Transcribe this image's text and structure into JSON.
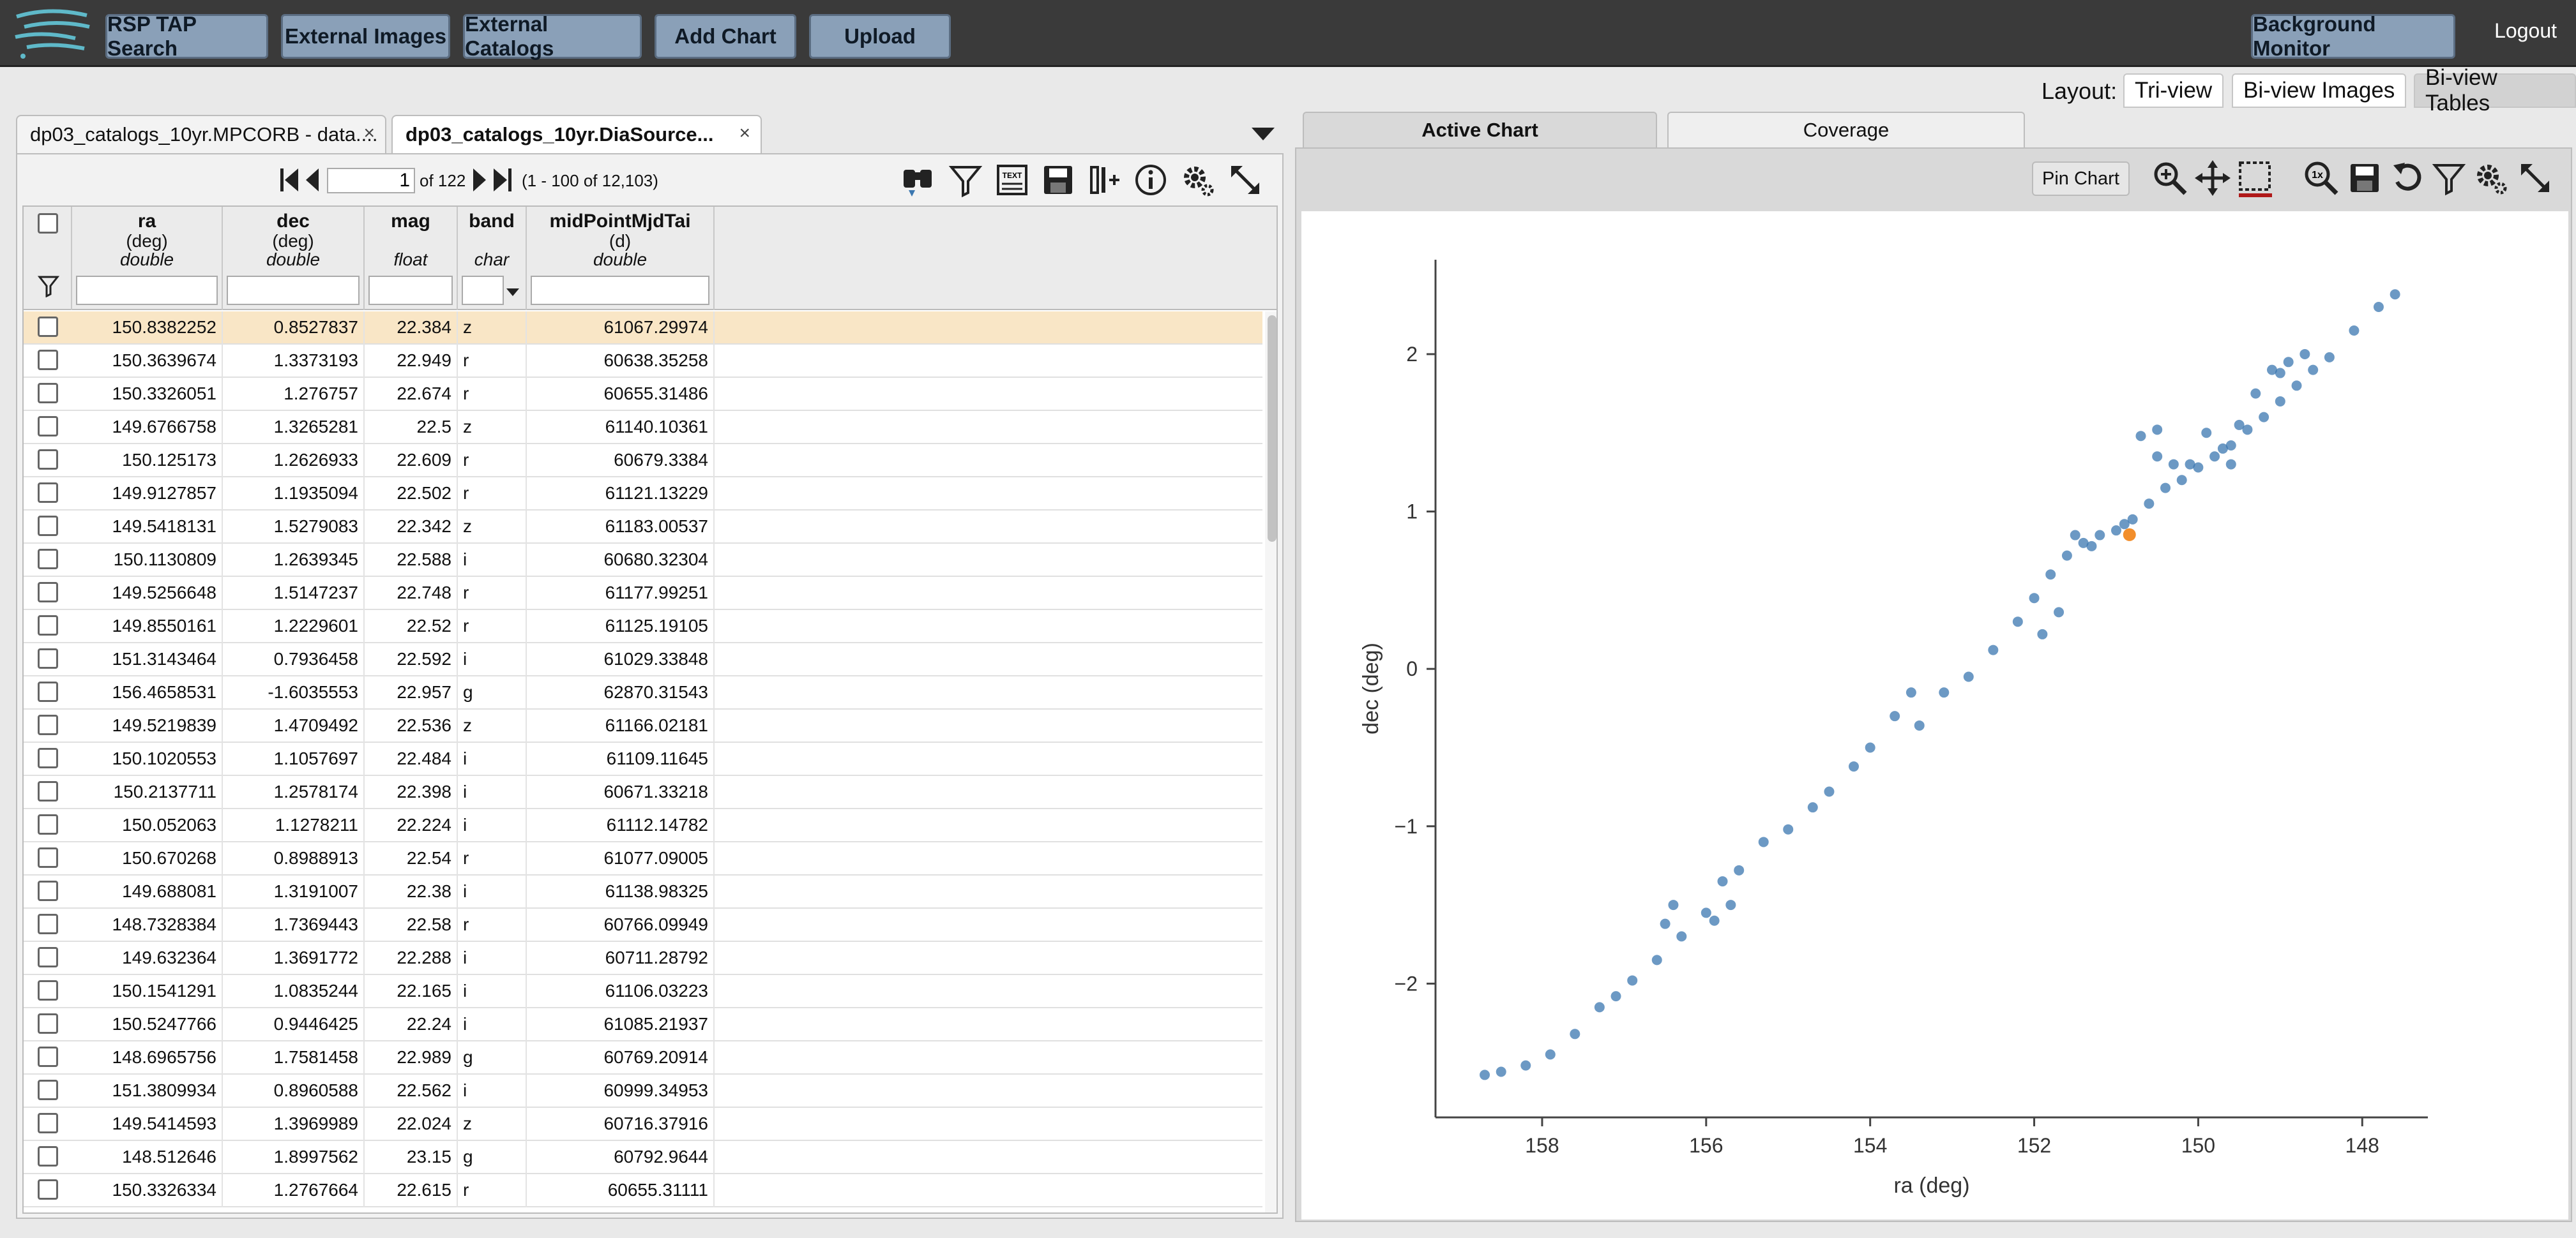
{
  "topbar": {
    "buttons": [
      "RSP TAP Search",
      "External Images",
      "External Catalogs",
      "Add Chart",
      "Upload"
    ],
    "background_monitor": "Background Monitor",
    "logout": "Logout"
  },
  "layout": {
    "label": "Layout:",
    "options": [
      "Tri-view",
      "Bi-view Images",
      "Bi-view Tables"
    ],
    "selected": "Bi-view Tables"
  },
  "tables": {
    "tabs": [
      "dp03_catalogs_10yr.MPCORB - data....",
      "dp03_catalogs_10yr.DiaSource..."
    ],
    "close_glyph": "×",
    "pager": {
      "page": "1",
      "of_text": "of 122",
      "range_text": "(1 - 100 of 12,103)"
    },
    "columns": [
      {
        "name": "ra",
        "unit": "(deg)",
        "type": "double"
      },
      {
        "name": "dec",
        "unit": "(deg)",
        "type": "double"
      },
      {
        "name": "mag",
        "unit": "",
        "type": "float"
      },
      {
        "name": "band",
        "unit": "",
        "type": "char"
      },
      {
        "name": "midPointMjdTai",
        "unit": "(d)",
        "type": "double"
      }
    ],
    "rows": [
      [
        "150.8382252",
        "0.8527837",
        "22.384",
        "z",
        "61067.29974"
      ],
      [
        "150.3639674",
        "1.3373193",
        "22.949",
        "r",
        "60638.35258"
      ],
      [
        "150.3326051",
        "1.276757",
        "22.674",
        "r",
        "60655.31486"
      ],
      [
        "149.6766758",
        "1.3265281",
        "22.5",
        "z",
        "61140.10361"
      ],
      [
        "150.125173",
        "1.2626933",
        "22.609",
        "r",
        "60679.3384"
      ],
      [
        "149.9127857",
        "1.1935094",
        "22.502",
        "r",
        "61121.13229"
      ],
      [
        "149.5418131",
        "1.5279083",
        "22.342",
        "z",
        "61183.00537"
      ],
      [
        "150.1130809",
        "1.2639345",
        "22.588",
        "i",
        "60680.32304"
      ],
      [
        "149.5256648",
        "1.5147237",
        "22.748",
        "r",
        "61177.99251"
      ],
      [
        "149.8550161",
        "1.2229601",
        "22.52",
        "r",
        "61125.19105"
      ],
      [
        "151.3143464",
        "0.7936458",
        "22.592",
        "i",
        "61029.33848"
      ],
      [
        "156.4658531",
        "-1.6035553",
        "22.957",
        "g",
        "62870.31543"
      ],
      [
        "149.5219839",
        "1.4709492",
        "22.536",
        "z",
        "61166.02181"
      ],
      [
        "150.1020553",
        "1.1057697",
        "22.484",
        "i",
        "61109.11645"
      ],
      [
        "150.2137711",
        "1.2578174",
        "22.398",
        "i",
        "60671.33218"
      ],
      [
        "150.052063",
        "1.1278211",
        "22.224",
        "i",
        "61112.14782"
      ],
      [
        "150.670268",
        "0.8988913",
        "22.54",
        "r",
        "61077.09005"
      ],
      [
        "149.688081",
        "1.3191007",
        "22.38",
        "i",
        "61138.98325"
      ],
      [
        "148.7328384",
        "1.7369443",
        "22.58",
        "r",
        "60766.09949"
      ],
      [
        "149.632364",
        "1.3691772",
        "22.288",
        "i",
        "60711.28792"
      ],
      [
        "150.1541291",
        "1.0835244",
        "22.165",
        "i",
        "61106.03223"
      ],
      [
        "150.5247766",
        "0.9446425",
        "22.24",
        "i",
        "61085.21937"
      ],
      [
        "148.6965756",
        "1.7581458",
        "22.989",
        "g",
        "60769.20914"
      ],
      [
        "151.3809934",
        "0.8960588",
        "22.562",
        "i",
        "60999.34953"
      ],
      [
        "149.5414593",
        "1.3969989",
        "22.024",
        "z",
        "60716.37916"
      ],
      [
        "148.512646",
        "1.8997562",
        "23.15",
        "g",
        "60792.9644"
      ],
      [
        "150.3326334",
        "1.2767664",
        "22.615",
        "r",
        "60655.31111"
      ]
    ]
  },
  "chart_panel": {
    "tabs": [
      "Active Chart",
      "Coverage"
    ],
    "pin_label": "Pin Chart",
    "zoom_1x_label": "1x"
  },
  "chart_data": {
    "type": "scatter",
    "xlabel": "ra (deg)",
    "ylabel": "dec (deg)",
    "x_reversed": true,
    "xlim": [
      159.3,
      147.2
    ],
    "ylim": [
      -2.85,
      2.6
    ],
    "xticks": [
      "158",
      "156",
      "154",
      "152",
      "150",
      "148"
    ],
    "yticks": [
      "2",
      "1",
      "0",
      "−1",
      "−2"
    ],
    "grid": false,
    "color": "#3b77b0",
    "highlight_color": "#f28e2b",
    "highlight_point": [
      150.8382252,
      0.8527837
    ],
    "series": [
      {
        "points": [
          [
            158.7,
            -2.58
          ],
          [
            158.5,
            -2.56
          ],
          [
            158.2,
            -2.52
          ],
          [
            157.9,
            -2.45
          ],
          [
            157.6,
            -2.32
          ],
          [
            157.3,
            -2.15
          ],
          [
            157.1,
            -2.08
          ],
          [
            156.9,
            -1.98
          ],
          [
            156.6,
            -1.85
          ],
          [
            156.3,
            -1.7
          ],
          [
            156.0,
            -1.55
          ],
          [
            155.8,
            -1.35
          ],
          [
            155.6,
            -1.28
          ],
          [
            155.9,
            -1.6
          ],
          [
            156.4,
            -1.5
          ],
          [
            156.5,
            -1.62
          ],
          [
            155.7,
            -1.5
          ],
          [
            155.3,
            -1.1
          ],
          [
            155.0,
            -1.02
          ],
          [
            154.7,
            -0.88
          ],
          [
            154.5,
            -0.78
          ],
          [
            154.2,
            -0.62
          ],
          [
            154.0,
            -0.5
          ],
          [
            153.7,
            -0.3
          ],
          [
            153.5,
            -0.15
          ],
          [
            153.4,
            -0.36
          ],
          [
            153.1,
            -0.15
          ],
          [
            152.8,
            -0.05
          ],
          [
            152.5,
            0.12
          ],
          [
            152.2,
            0.3
          ],
          [
            152.0,
            0.45
          ],
          [
            151.8,
            0.6
          ],
          [
            151.6,
            0.72
          ],
          [
            151.9,
            0.22
          ],
          [
            151.7,
            0.36
          ],
          [
            151.4,
            0.8
          ],
          [
            151.2,
            0.85
          ],
          [
            151.0,
            0.88
          ],
          [
            150.8,
            0.95
          ],
          [
            150.6,
            1.05
          ],
          [
            150.4,
            1.15
          ],
          [
            150.2,
            1.2
          ],
          [
            150.0,
            1.28
          ],
          [
            149.8,
            1.35
          ],
          [
            149.6,
            1.42
          ],
          [
            149.4,
            1.52
          ],
          [
            149.2,
            1.6
          ],
          [
            149.0,
            1.7
          ],
          [
            148.8,
            1.8
          ],
          [
            148.6,
            1.9
          ],
          [
            148.4,
            1.98
          ],
          [
            148.1,
            2.15
          ],
          [
            147.8,
            2.3
          ],
          [
            147.6,
            2.38
          ],
          [
            151.5,
            0.85
          ],
          [
            151.3,
            0.78
          ],
          [
            150.9,
            0.92
          ],
          [
            150.5,
            1.35
          ],
          [
            150.3,
            1.3
          ],
          [
            150.1,
            1.3
          ],
          [
            150.7,
            1.48
          ],
          [
            150.5,
            1.52
          ],
          [
            149.7,
            1.4
          ],
          [
            149.5,
            1.55
          ],
          [
            149.3,
            1.75
          ],
          [
            149.0,
            1.88
          ],
          [
            148.9,
            1.95
          ],
          [
            148.7,
            2.0
          ],
          [
            149.1,
            1.9
          ],
          [
            149.6,
            1.3
          ],
          [
            149.9,
            1.5
          ]
        ]
      }
    ]
  }
}
